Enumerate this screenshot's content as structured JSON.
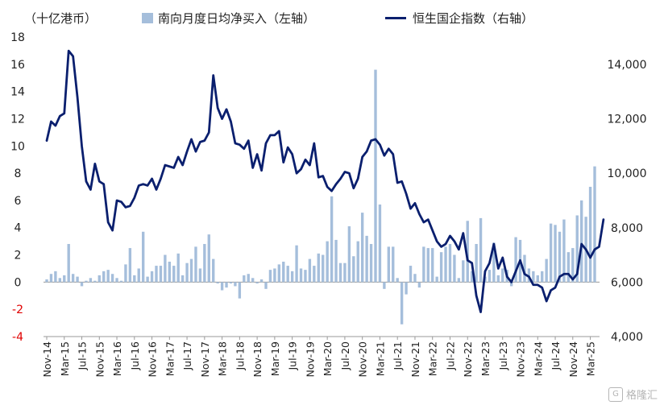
{
  "legend": {
    "unit": "（十亿港币）",
    "bar_series": "南向月度日均净买入（左轴）",
    "line_series": "恒生国企指数（右轴）"
  },
  "watermark": {
    "text": "格隆汇",
    "icon": "glh-logo-icon"
  },
  "colors": {
    "bars": "#a5bedb",
    "line": "#0a1f6e",
    "negative_tick": "#e00000",
    "axis_text": "#222222"
  },
  "chart_data": {
    "type": "bar+line",
    "start_month": "Nov-14",
    "x_tick_labels": [
      "Nov-14",
      "Mar-15",
      "Jul-15",
      "Nov-15",
      "Mar-16",
      "Jul-16",
      "Nov-16",
      "Mar-17",
      "Jul-17",
      "Nov-17",
      "Mar-18",
      "Jul-18",
      "Nov-18",
      "Mar-19",
      "Jul-19",
      "Nov-19",
      "Mar-20",
      "Jul-20",
      "Nov-20",
      "Mar-21",
      "Jul-21",
      "Nov-21",
      "Mar-22",
      "Jul-22",
      "Nov-22",
      "Mar-23",
      "Jul-23",
      "Nov-23",
      "Mar-24",
      "Jul-24",
      "Nov-24",
      "Mar-25"
    ],
    "left_axis": {
      "min": -4,
      "max": 18,
      "ticks": [
        18,
        16,
        14,
        12,
        10,
        8,
        6,
        4,
        2,
        0,
        -2,
        -4
      ],
      "negative_color": "#e00000"
    },
    "right_axis": {
      "min": 4000,
      "max": 14000,
      "ticks": [
        "14,000",
        "12,000",
        "10,000",
        "8,000",
        "6,000",
        "4,000"
      ],
      "tick_values": [
        14000,
        12000,
        10000,
        8000,
        6000,
        4000
      ]
    },
    "series": [
      {
        "name": "南向月度日均净买入（左轴）",
        "type": "bar",
        "axis": "left",
        "values": [
          0.2,
          0.6,
          0.8,
          0.3,
          0.5,
          2.8,
          0.6,
          0.4,
          -0.3,
          0.1,
          0.3,
          0.1,
          0.5,
          0.8,
          0.9,
          0.6,
          0.3,
          0.1,
          1.3,
          2.5,
          0.5,
          1.0,
          3.7,
          0.4,
          0.8,
          1.2,
          1.2,
          2.0,
          1.5,
          1.2,
          2.1,
          0.5,
          1.4,
          1.7,
          2.6,
          1.0,
          2.8,
          3.5,
          1.7,
          -0.1,
          -0.6,
          -0.4,
          -0.1,
          -0.3,
          -1.2,
          0.5,
          0.6,
          0.3,
          -0.1,
          0.2,
          -0.5,
          0.9,
          1.0,
          1.3,
          1.5,
          1.2,
          0.8,
          2.7,
          1.0,
          0.9,
          1.7,
          1.2,
          2.1,
          2.0,
          3.0,
          6.3,
          3.1,
          1.4,
          1.4,
          4.1,
          1.9,
          3.0,
          5.1,
          3.4,
          2.8,
          15.6,
          5.7,
          -0.5,
          2.6,
          2.6,
          0.3,
          -3.1,
          -0.9,
          1.2,
          0.6,
          -0.4,
          2.6,
          2.5,
          2.5,
          0.4,
          2.2,
          2.6,
          2.8,
          2.0,
          0.3,
          1.6,
          4.5,
          0.8,
          2.8,
          4.7,
          0.4,
          0.9,
          2.9,
          0.5,
          1.0,
          0.9,
          -0.3,
          3.3,
          3.1,
          2.0,
          1.0,
          0.8,
          0.5,
          0.8,
          1.7,
          4.3,
          4.2,
          3.7,
          4.6,
          2.2,
          2.5,
          4.9,
          6.0,
          4.8,
          7.0,
          8.5
        ]
      },
      {
        "name": "恒生国企指数（右轴）",
        "type": "line",
        "axis": "right",
        "values": [
          11200,
          11900,
          11750,
          12100,
          12200,
          14500,
          14300,
          12800,
          11000,
          9700,
          9400,
          10350,
          9700,
          9600,
          8200,
          7900,
          9000,
          8950,
          8750,
          8800,
          9100,
          9550,
          9600,
          9550,
          9800,
          9400,
          9800,
          10300,
          10250,
          10200,
          10600,
          10300,
          10800,
          11250,
          10800,
          11150,
          11200,
          11500,
          13600,
          12400,
          12000,
          12350,
          11900,
          11100,
          11050,
          10900,
          11200,
          10200,
          10700,
          10100,
          11100,
          11400,
          11400,
          11550,
          10400,
          10950,
          10700,
          10000,
          10150,
          10500,
          10300,
          11100,
          9850,
          9900,
          9500,
          9350,
          9600,
          9800,
          10050,
          10000,
          9450,
          9800,
          10600,
          10800,
          11200,
          11250,
          11050,
          10650,
          10900,
          10700,
          9650,
          9700,
          9250,
          8700,
          8900,
          8500,
          8200,
          8300,
          7900,
          7500,
          7300,
          7400,
          7700,
          7500,
          7200,
          7800,
          6800,
          6700,
          5500,
          4900,
          6400,
          6700,
          7400,
          6500,
          6900,
          6200,
          6000,
          6400,
          6800,
          6300,
          6200,
          5900,
          5900,
          5800,
          5300,
          5700,
          5800,
          6200,
          6300,
          6300,
          6100,
          6300,
          7400,
          7200,
          6900,
          7200,
          7300,
          8300
        ]
      }
    ]
  }
}
